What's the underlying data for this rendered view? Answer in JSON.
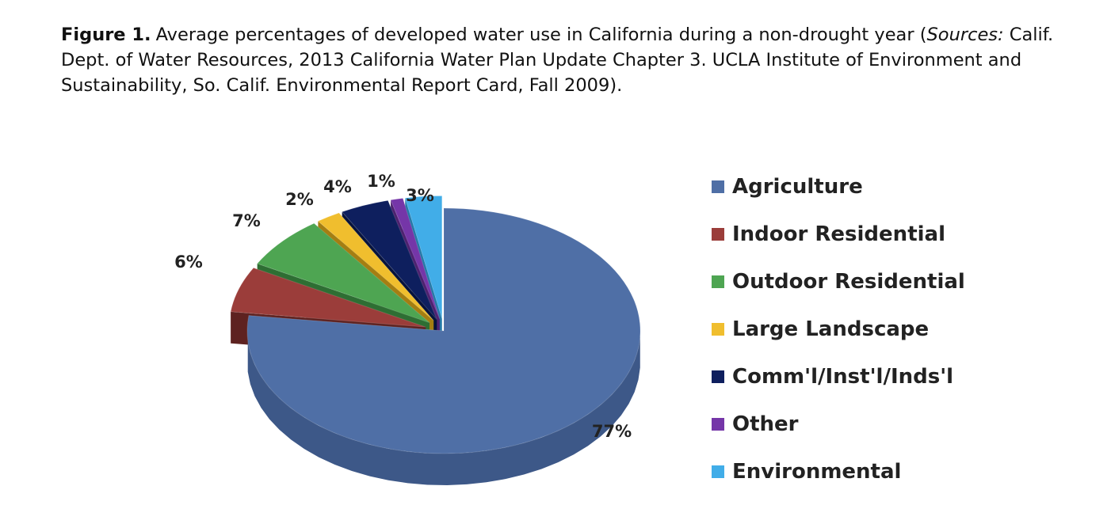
{
  "caption": {
    "figure_label": "Figure 1.",
    "text_before_sources": "Average percentages of developed water use in California during a non-drought year (",
    "sources_label": "Sources:",
    "text_after_sources": " Calif. Dept. of Water Resources, 2013 California Water Plan Update Chapter 3.  UCLA Institute of Environment and Sustainability, So. Calif. Environmental Report Card, Fall 2009)."
  },
  "chart_data": {
    "type": "pie",
    "style": "3d-exploded",
    "legend_position": "right",
    "slices": [
      {
        "label": "Agriculture",
        "value": 77,
        "display": "77%",
        "color": "#4F6FA6",
        "side_color": "#3D5888"
      },
      {
        "label": "Indoor Residential",
        "value": 6,
        "display": "6%",
        "color": "#9B3D3A",
        "side_color": "#5E2220"
      },
      {
        "label": "Outdoor Residential",
        "value": 7,
        "display": "7%",
        "color": "#4EA552",
        "side_color": "#2E6E33"
      },
      {
        "label": "Large Landscape",
        "value": 2,
        "display": "2%",
        "color": "#F0BE2E",
        "side_color": "#A47E12"
      },
      {
        "label": "Comm'l/Inst'l/Inds'l",
        "value": 4,
        "display": "4%",
        "color": "#0E1F5E",
        "side_color": "#07133D"
      },
      {
        "label": "Other",
        "value": 1,
        "display": "1%",
        "color": "#7536A8",
        "side_color": "#4D2170"
      },
      {
        "label": "Environmental",
        "value": 3,
        "display": "3%",
        "color": "#41ADE8",
        "side_color": "#2479A8"
      }
    ]
  }
}
